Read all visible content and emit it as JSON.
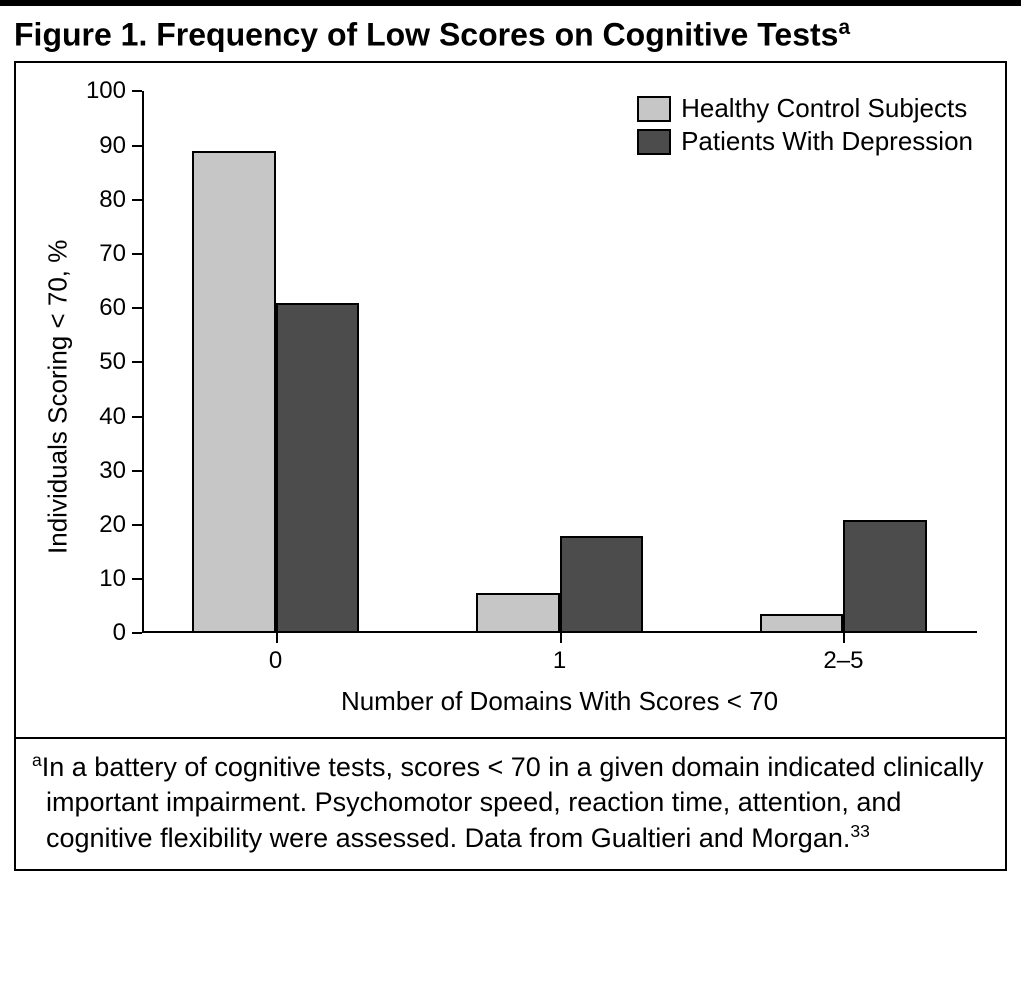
{
  "figure": {
    "label_prefix": "Figure 1.",
    "title_text": "Frequency of Low Scores on Cognitive Tests",
    "title_super": "a"
  },
  "chart": {
    "type": "bar",
    "background_color": "#ffffff",
    "axis_color": "#000000",
    "ylabel": "Individuals Scoring < 70, %",
    "xlabel": "Number of Domains With Scores < 70",
    "ylim": [
      0,
      100
    ],
    "ytick_step": 10,
    "yticks": [
      0,
      10,
      20,
      30,
      40,
      50,
      60,
      70,
      80,
      90,
      100
    ],
    "categories": [
      "0",
      "1",
      "2–5"
    ],
    "series": [
      {
        "name": "Healthy Control Subjects",
        "color": "#c6c6c6",
        "values": [
          89,
          7.5,
          3.5
        ]
      },
      {
        "name": "Patients With Depression",
        "color": "#4c4c4c",
        "values": [
          61,
          18,
          21
        ]
      }
    ],
    "bar_group_width_pct": 20,
    "bar_width_pct": 10,
    "label_fontsize": 26,
    "tick_fontsize": 24,
    "legend_fontsize": 26
  },
  "footnote": {
    "super": "a",
    "text_line": "In a battery of cognitive tests, scores < 70 in a given domain indicated clinically important impairment. Psychomotor speed, reaction time, attention, and cognitive flexibility were assessed. Data from Gualtieri and Morgan.",
    "ref_super": "33"
  }
}
